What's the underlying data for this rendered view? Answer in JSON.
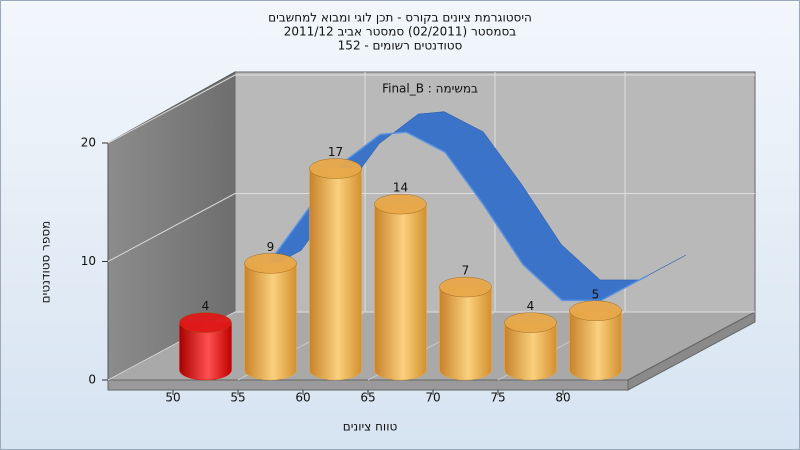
{
  "chart_data": {
    "type": "histogram",
    "title": [
      "היסטוגרמת ציונים בקורס - תכן לוגי ומבוא למחשבים",
      "בסמסטר  (02/2011)  סמסטר אביב 2011/12",
      "סטודנטים רשומים - 152"
    ],
    "annotation": "במשימה : Final_B",
    "x_label": "טווח ציונים",
    "y_label": "מספר סטודנטים",
    "bins": [
      50,
      55,
      60,
      65,
      70,
      75,
      80,
      85
    ],
    "values": [
      4,
      9,
      17,
      14,
      7,
      4,
      5
    ],
    "colors": [
      "#e01818",
      "#e8a84a",
      "#e8a84a",
      "#e8a84a",
      "#e8a84a",
      "#e8a84a",
      "#e8a84a"
    ],
    "xlim": [
      45,
      85
    ],
    "xticks": [
      50,
      55,
      60,
      65,
      70,
      75,
      80
    ],
    "ylim": [
      0,
      20
    ],
    "yticks": [
      0,
      10,
      20
    ],
    "curve": {
      "color": "#3a73c8",
      "x": [
        54,
        57,
        60,
        63,
        65,
        68,
        71,
        74,
        77,
        80,
        83.6
      ],
      "values": [
        7.5,
        12,
        16.5,
        19,
        19.2,
        17.5,
        13,
        8,
        5,
        5,
        7.1
      ]
    },
    "grid": true
  }
}
